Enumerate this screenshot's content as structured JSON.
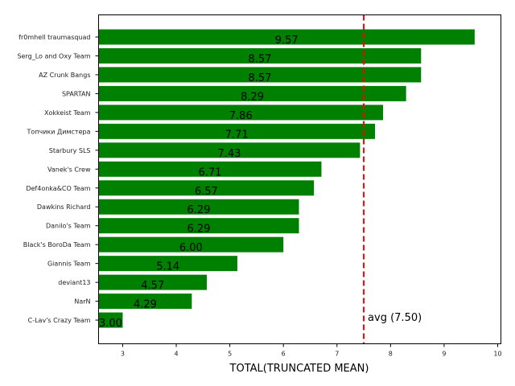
{
  "chart_data": {
    "type": "bar",
    "orientation": "horizontal",
    "categories": [
      "fr0mhell traumasquad",
      "Serg_Lo and Oxy Team",
      "AZ Crunk Bangs",
      "SPARTAN",
      "Xokkeist Team",
      "Топчики Димстера",
      "Starbury SLS",
      "Vanek's Crew",
      "Def4onka&CO Team",
      "Dawkins Richard",
      "Danilo's Team",
      "Black's BoroDa Team",
      "Giannis Team",
      "deviant13",
      "NarN",
      "C-Lav's Crazy Team"
    ],
    "values": [
      9.57,
      8.57,
      8.57,
      8.29,
      7.86,
      7.71,
      7.43,
      6.71,
      6.57,
      6.29,
      6.29,
      6.0,
      5.14,
      4.57,
      4.29,
      3.0
    ],
    "data_labels": [
      "9.57",
      "8.57",
      "8.57",
      "8.29",
      "7.86",
      "7.71",
      "7.43",
      "6.71",
      "6.57",
      "6.29",
      "6.29",
      "6.00",
      "5.14",
      "4.57",
      "4.29",
      "3.00"
    ],
    "xlabel": "TOTAL(TRUNCATED MEAN)",
    "ylabel": "",
    "title": "",
    "xlim": [
      2.55,
      10.06
    ],
    "xticks": [
      3,
      4,
      5,
      6,
      7,
      8,
      9,
      10
    ],
    "grid": false,
    "bar_color": "#008000",
    "reference_line": {
      "value": 7.5,
      "label": "avg (7.50)",
      "color": "#ff0000",
      "style": "dashed"
    }
  }
}
